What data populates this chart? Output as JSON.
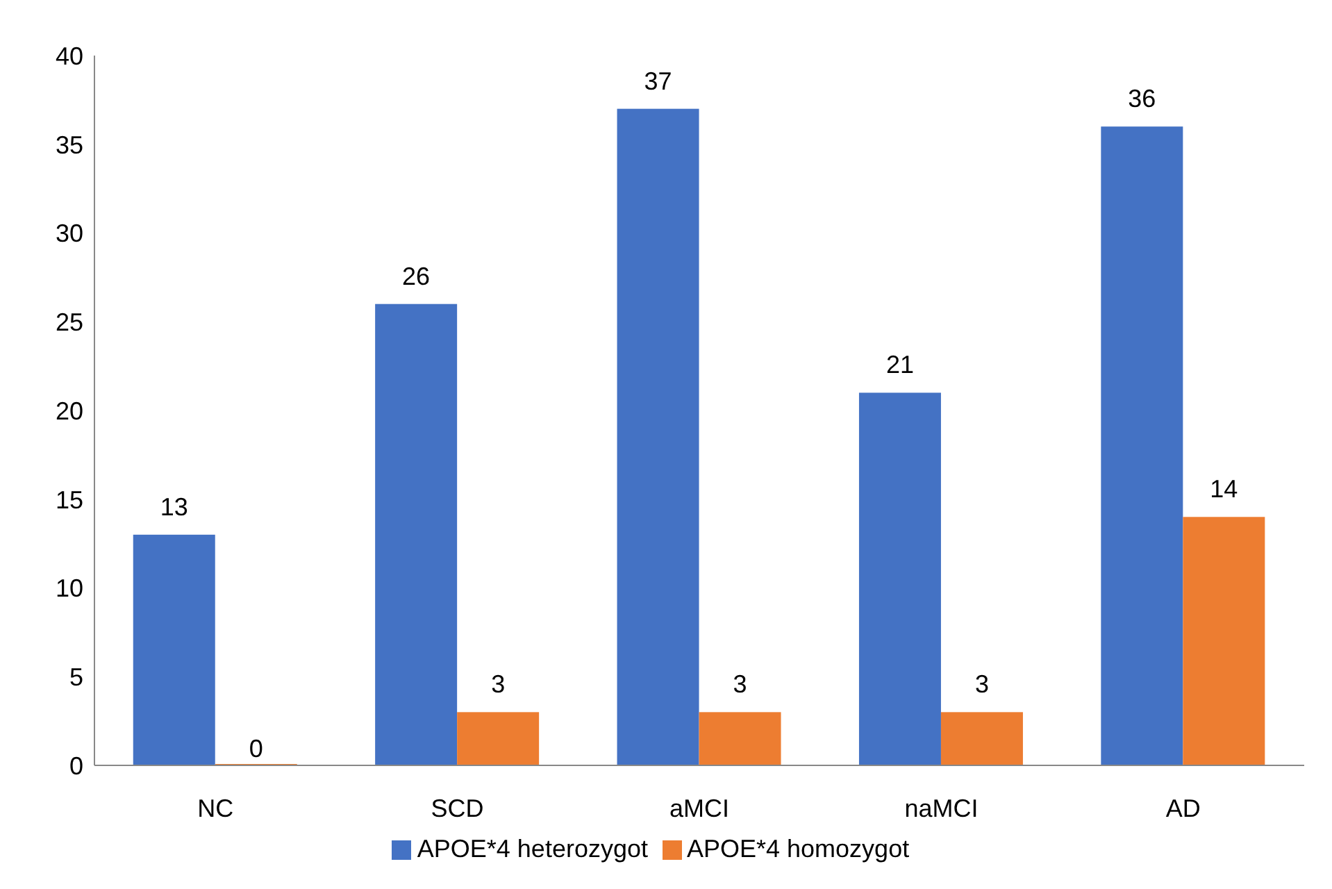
{
  "chart_data": {
    "type": "bar",
    "categories": [
      "NC",
      "SCD",
      "aMCI",
      "naMCI",
      "AD"
    ],
    "series": [
      {
        "name": "APOE*4 heterozygot",
        "color": "#4472c4",
        "values": [
          13,
          26,
          37,
          21,
          36
        ]
      },
      {
        "name": "APOE*4 homozygot",
        "color": "#ed7d31",
        "values": [
          0,
          3,
          3,
          3,
          14
        ]
      }
    ],
    "ylim": [
      0,
      40
    ],
    "yticks": [
      0,
      5,
      10,
      15,
      20,
      25,
      30,
      35,
      40
    ],
    "grid": false,
    "legend": "bottom",
    "data_labels": true
  }
}
